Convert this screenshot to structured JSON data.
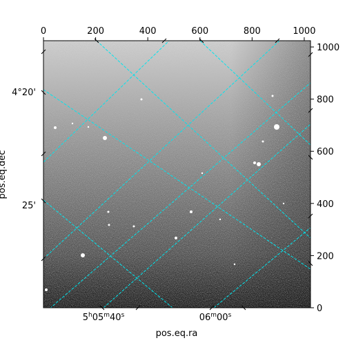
{
  "chart_data": {
    "type": "heatmap",
    "xlabel": "pos.eq.ra",
    "ylabel": "pos.eq.dec",
    "pixel_axis": {
      "x_range": [
        0,
        1024
      ],
      "y_range": [
        0,
        1024
      ],
      "top_ticks": [
        "0",
        "200",
        "400",
        "600",
        "800",
        "1000"
      ],
      "right_ticks": [
        "0",
        "200",
        "400",
        "600",
        "800",
        "1000"
      ]
    },
    "ra_ticks": [
      {
        "label": "5h05m40s",
        "h": "5",
        "m": "05",
        "s": "40"
      },
      {
        "label": "06m00s",
        "m": "06",
        "s": "00"
      }
    ],
    "dec_ticks": [
      "4°20'",
      "25'"
    ],
    "grid": true,
    "grid_color": "#00e5ee",
    "colormap": "gray",
    "image_description_colors": {
      "bright": "#ffffff",
      "dark": "#000000"
    }
  }
}
